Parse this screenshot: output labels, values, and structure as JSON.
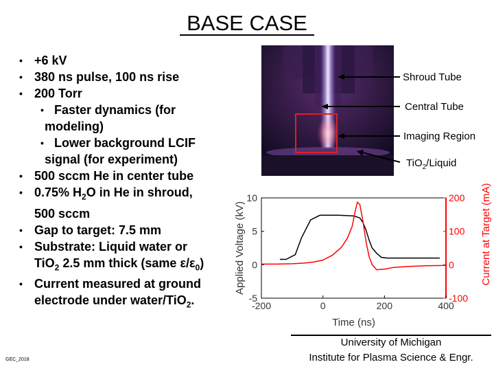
{
  "title": "BASE CASE",
  "bullets": [
    {
      "level": 1,
      "segments": [
        {
          "t": "+6 kV"
        }
      ]
    },
    {
      "level": 1,
      "segments": [
        {
          "t": "380 ns pulse, 100 ns rise"
        }
      ]
    },
    {
      "level": 1,
      "segments": [
        {
          "t": "200 Torr"
        }
      ]
    },
    {
      "level": 2,
      "segments": [
        {
          "t": "Faster dynamics (for"
        }
      ]
    },
    {
      "level": 0,
      "segments": [
        {
          "t": "modeling)"
        }
      ]
    },
    {
      "level": 2,
      "segments": [
        {
          "t": "Lower background LCIF"
        }
      ]
    },
    {
      "level": 0,
      "segments": [
        {
          "t": "signal (for experiment)"
        }
      ]
    },
    {
      "level": 1,
      "segments": [
        {
          "t": "500 sccm He in center tube"
        }
      ]
    },
    {
      "level": 1,
      "segments": [
        {
          "t": "0.75% H"
        },
        {
          "t": "2",
          "sub": true
        },
        {
          "t": "O in He in shroud,"
        }
      ]
    },
    {
      "level": 0,
      "segments": [
        {
          "t": "500 sccm"
        }
      ]
    },
    {
      "level": 1,
      "segments": [
        {
          "t": "Gap to target: 7.5 mm"
        }
      ]
    },
    {
      "level": 1,
      "segments": [
        {
          "t": "Substrate: Liquid water or"
        }
      ]
    },
    {
      "level": 0,
      "segments": [
        {
          "t": "TiO"
        },
        {
          "t": "2",
          "sub": true
        },
        {
          "t": " 2.5 mm thick (same ε/ε"
        },
        {
          "t": "0",
          "sub": true
        },
        {
          "t": ")"
        }
      ]
    },
    {
      "level": 1,
      "segments": [
        {
          "t": "Current measured at ground"
        }
      ]
    },
    {
      "level": 0,
      "segments": [
        {
          "t": "electrode under water/TiO"
        },
        {
          "t": "2",
          "sub": true
        },
        {
          "t": "."
        }
      ]
    }
  ],
  "photo_labels": {
    "shroud": "Shroud Tube",
    "central": "Central Tube",
    "imaging": "Imaging Region",
    "tio2_main": "TiO",
    "tio2_sub": "2",
    "tio2_rest": "/Liquid"
  },
  "chart_data": {
    "type": "line",
    "xlabel": "Time (ns)",
    "ylabel_left": "Applied Voltage (kV)",
    "ylabel_right": "Current at Target (mA)",
    "xlim": [
      -200,
      400
    ],
    "ylim_left": [
      -5,
      10
    ],
    "ylim_right": [
      -100,
      200
    ],
    "xticks": [
      -200,
      0,
      200,
      400
    ],
    "yticks_left": [
      -5,
      0,
      5,
      10
    ],
    "yticks_right": [
      -100,
      0,
      100,
      200
    ],
    "colors": {
      "voltage": "#000000",
      "current": "#ff0000"
    },
    "series": [
      {
        "axis": "left",
        "x": [
          -140,
          -120,
          -90,
          -70,
          -40,
          -10,
          0,
          50,
          100,
          120,
          130,
          140,
          150,
          160,
          175,
          190,
          210,
          230,
          260,
          300,
          340,
          380
        ],
        "y": [
          0.8,
          0.8,
          1.5,
          4.0,
          6.7,
          7.4,
          7.4,
          7.4,
          7.3,
          7.0,
          6.3,
          5.2,
          3.7,
          2.5,
          1.7,
          1.1,
          1.0,
          1.0,
          1.0,
          1.0,
          1.0,
          1.0
        ]
      },
      {
        "axis": "right",
        "x": [
          -200,
          -150,
          -100,
          -60,
          -30,
          0,
          30,
          60,
          80,
          95,
          105,
          112,
          120,
          130,
          140,
          150,
          160,
          175,
          200,
          230,
          280,
          340,
          400
        ],
        "y": [
          2,
          2,
          3,
          5,
          8,
          14,
          28,
          52,
          80,
          115,
          160,
          187,
          180,
          130,
          70,
          25,
          0,
          -15,
          -13,
          -8,
          -5,
          -3,
          -2
        ]
      }
    ]
  },
  "footer": {
    "line1": "University of Michigan",
    "line2": "Institute for Plasma Science & Engr."
  },
  "small_label": "GEC_2018"
}
